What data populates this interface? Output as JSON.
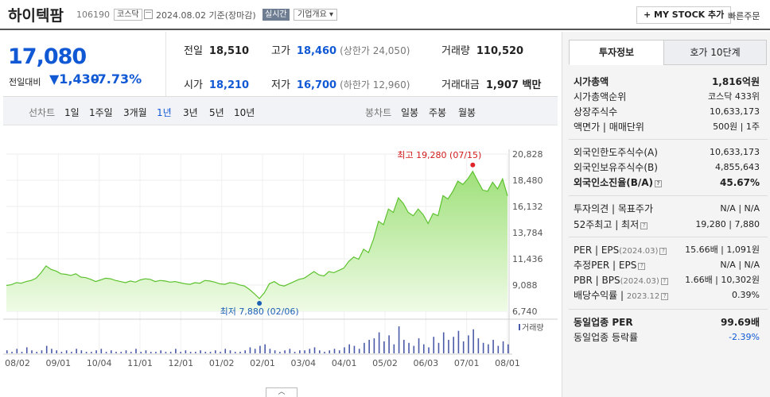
{
  "header": {
    "name": "하이텍팜",
    "code": "106190",
    "market": "코스닥",
    "date": "2024.08.02  기준(장마감)",
    "realtime": "실시간",
    "company_info": "기업개요 ▾",
    "mystock": "+ MY STOCK 추가",
    "quick_order": "빠른주문"
  },
  "price": {
    "current": "17,080",
    "change_label": "전일대비",
    "change": "▼1,430",
    "percent": "-7.73%"
  },
  "stats": {
    "prev_k": "전일",
    "prev_v": "18,510",
    "high_k": "고가",
    "high_v": "18,460",
    "high_s": "(상한가 24,050)",
    "vol_k": "거래량",
    "vol_v": "110,520",
    "open_k": "시가",
    "open_v": "18,210",
    "low_k": "저가",
    "low_v": "16,700",
    "low_s": "(하한가 12,960)",
    "amt_k": "거래대금",
    "amt_v": "1,907 백만"
  },
  "periods": {
    "line_label": "선차트",
    "line": [
      "1일",
      "1주일",
      "3개월",
      "1년",
      "3년",
      "5년",
      "10년"
    ],
    "candle_label": "봉차트",
    "candle": [
      "일봉",
      "주봉",
      "월봉"
    ]
  },
  "chart_data": {
    "type": "area",
    "y_ticks": [
      "20,828",
      "18,480",
      "16,132",
      "13,784",
      "11,436",
      "9,088",
      "6,740"
    ],
    "ylim": [
      6740,
      20828
    ],
    "x_ticks": [
      "08/02",
      "09/01",
      "10/04",
      "11/01",
      "12/01",
      "01/02",
      "02/01",
      "03/04",
      "04/01",
      "05/02",
      "06/03",
      "07/01",
      "08/01"
    ],
    "series": [
      {
        "values": [
          9050,
          9120,
          9300,
          9250,
          9400,
          9500,
          9700,
          10200,
          10800,
          10500,
          10350,
          10100,
          10050,
          9950,
          10100,
          9800,
          9750,
          9600,
          9400,
          9550,
          9700,
          9650,
          9500,
          9400,
          9300,
          9450,
          9350,
          9550,
          9650,
          9600,
          9400,
          9500,
          9450,
          9350,
          9400,
          9300,
          9200,
          9150,
          9300,
          9250,
          9500,
          9450,
          9350,
          9200,
          9150,
          9300,
          9250,
          9100,
          9000,
          8700,
          8300,
          7880,
          8400,
          9200,
          9400,
          9100,
          9000,
          9200,
          9400,
          9600,
          9700,
          10000,
          10300,
          10000,
          9900,
          10300,
          10200,
          10400,
          10600,
          11200,
          11600,
          11400,
          12300,
          12000,
          13200,
          14800,
          14500,
          15900,
          15600,
          16900,
          16400,
          15600,
          15300,
          15900,
          15400,
          14600,
          15500,
          15300,
          17100,
          16800,
          17500,
          18400,
          18100,
          18600,
          19280,
          18400,
          17600,
          17500,
          18300,
          17700,
          18600,
          17080
        ]
      }
    ],
    "max_label": "최고 19,280 (07/15)",
    "min_label": "최저 7,880 (02/06)",
    "volume_label": "거래량",
    "volume": [
      2,
      1,
      3,
      1,
      4,
      2,
      1,
      2,
      5,
      3,
      2,
      1,
      2,
      1,
      3,
      2,
      1,
      1,
      2,
      3,
      1,
      2,
      1,
      1,
      2,
      1,
      3,
      1,
      2,
      1,
      1,
      2,
      1,
      1,
      3,
      1,
      2,
      1,
      1,
      2,
      1,
      1,
      2,
      1,
      3,
      2,
      1,
      1,
      2,
      4,
      3,
      5,
      6,
      3,
      2,
      1,
      2,
      3,
      1,
      2,
      2,
      3,
      4,
      2,
      1,
      2,
      3,
      2,
      4,
      6,
      5,
      3,
      7,
      9,
      10,
      14,
      8,
      12,
      6,
      18,
      9,
      7,
      5,
      10,
      6,
      4,
      11,
      7,
      14,
      9,
      11,
      15,
      8,
      12,
      16,
      10,
      7,
      6,
      9,
      5,
      8,
      6
    ]
  },
  "right": {
    "tab1": "투자정보",
    "tab2": "호가 10단계",
    "rows": [
      {
        "k": "시가총액",
        "v": "1,816억원"
      },
      {
        "k": "시가총액순위",
        "v": "코스닥 433위"
      },
      {
        "k": "상장주식수",
        "v": "10,633,173"
      },
      {
        "k": "액면가 | 매매단위",
        "v": "500원 | 1주"
      },
      {
        "k": "외국인한도주식수(A)",
        "v": "10,633,173"
      },
      {
        "k": "외국인보유주식수(B)",
        "v": "4,855,643"
      },
      {
        "k": "외국인소진율(B/A)",
        "v": "45.67%"
      },
      {
        "k": "투자의견 | 목표주가",
        "v": "N/A | N/A"
      },
      {
        "k": "52주최고 | 최저",
        "v": "19,280 | 7,880"
      },
      {
        "k": "PER | EPS",
        "ks": "(2024.03)",
        "v": "15.66배 | 1,091원"
      },
      {
        "k": "추정PER | EPS",
        "v": "N/A | N/A"
      },
      {
        "k": "PBR | BPS",
        "ks": "(2024.03)",
        "v": "1.66배 | 10,302원"
      },
      {
        "k": "배당수익률 |",
        "ks": "2023.12",
        "v": "0.39%"
      },
      {
        "k": "동일업종 PER",
        "v": "99.69배"
      },
      {
        "k": "동일업종 등락률",
        "v": "-2.39%"
      }
    ]
  }
}
